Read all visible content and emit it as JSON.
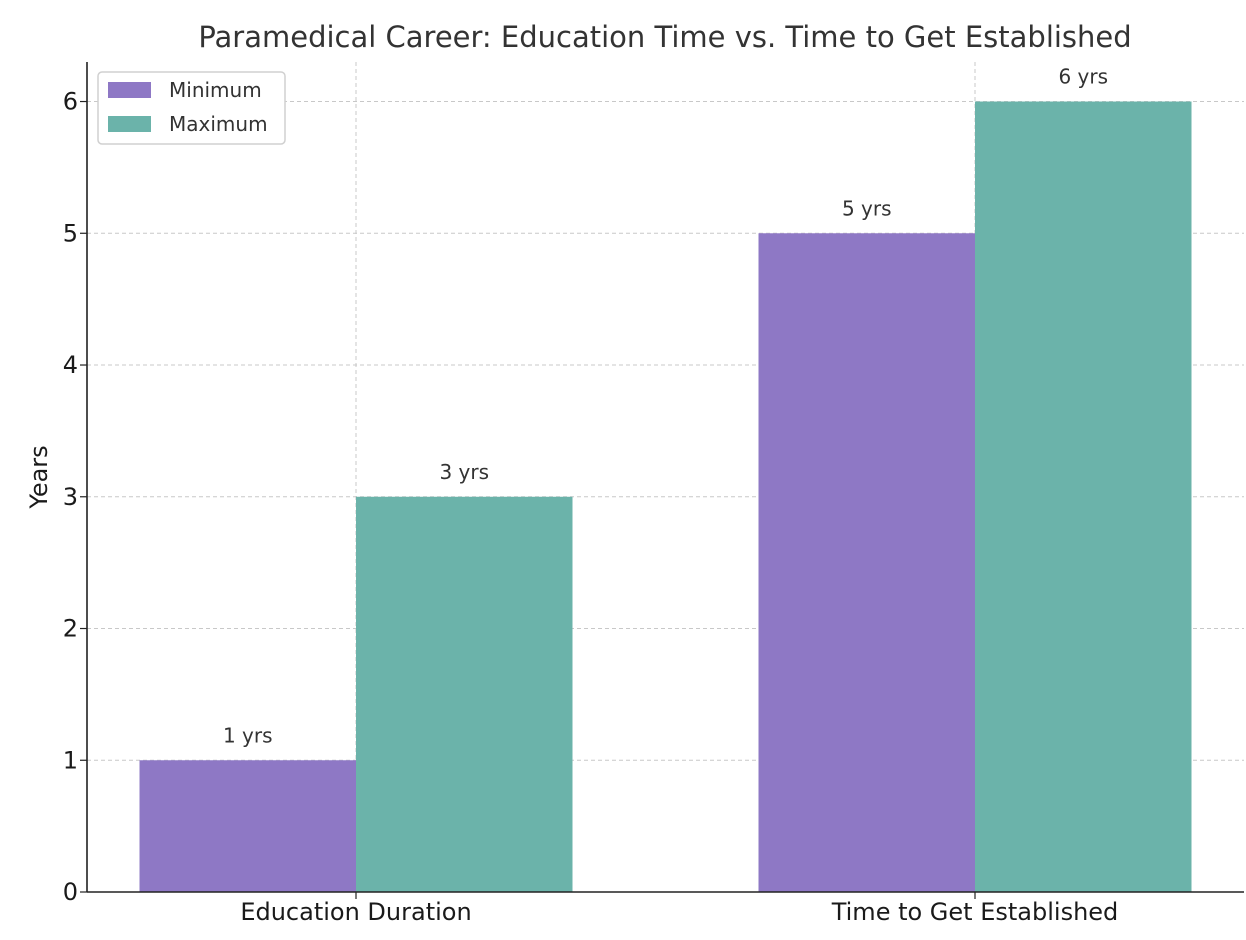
{
  "chart_data": {
    "type": "bar",
    "title": "Paramedical Career: Education Time vs. Time to Get Established",
    "xlabel": "",
    "ylabel": "Years",
    "categories": [
      "Education Duration",
      "Time to Get Established"
    ],
    "series": [
      {
        "name": "Minimum",
        "values": [
          1,
          5
        ],
        "color": "#8e78c5"
      },
      {
        "name": "Maximum",
        "values": [
          3,
          6
        ],
        "color": "#6bb3aa"
      }
    ],
    "value_labels": [
      [
        "1 yrs",
        "5 yrs"
      ],
      [
        "3 yrs",
        "6 yrs"
      ]
    ],
    "ylim": [
      0,
      6.3
    ],
    "yticks": [
      "0",
      "1",
      "2",
      "3",
      "4",
      "5",
      "6"
    ],
    "grid": true,
    "legend_position": "top-left"
  }
}
